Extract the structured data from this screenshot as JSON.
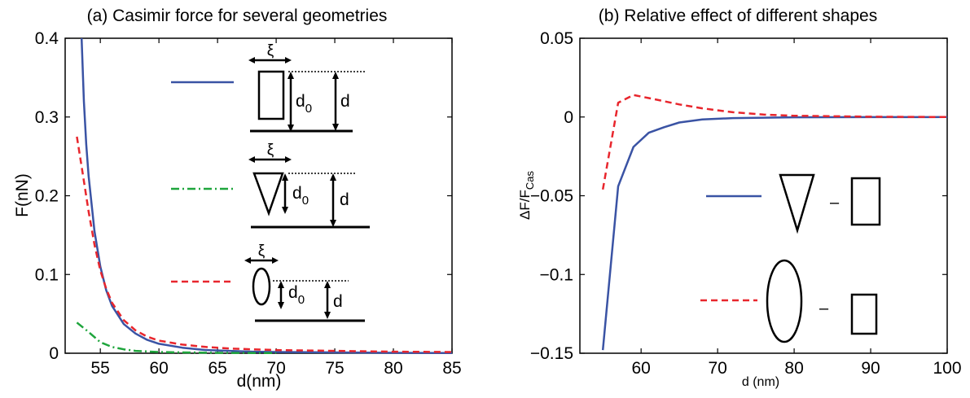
{
  "chart_data": [
    {
      "type": "line",
      "title": "(a) Casimir force for several geometries",
      "xlabel": "d(nm)",
      "ylabel": "F(nN)",
      "xlim": [
        52,
        85
      ],
      "ylim": [
        0,
        0.4
      ],
      "xticks": [
        "55",
        "60",
        "65",
        "70",
        "75",
        "80",
        "85"
      ],
      "yticks": [
        "0",
        "0.1",
        "0.2",
        "0.3",
        "0.4"
      ],
      "grid": false,
      "legend_symbols": {
        "xi": "ξ",
        "d0_base": "d",
        "d0_sub": "0",
        "d": "d"
      },
      "series": [
        {
          "style": "solid",
          "color": "#3a53a4",
          "x": [
            53.4,
            53.6,
            53.8,
            54,
            54.5,
            55,
            55.5,
            56,
            57,
            58,
            59,
            60,
            62,
            64,
            66,
            68,
            70,
            75,
            80,
            85
          ],
          "y": [
            0.4,
            0.32,
            0.265,
            0.225,
            0.155,
            0.11,
            0.08,
            0.06,
            0.037,
            0.025,
            0.017,
            0.012,
            0.007,
            0.004,
            0.003,
            0.002,
            0.0015,
            0.001,
            0.0005,
            0.0003
          ]
        },
        {
          "style": "dashdot",
          "color": "#1ea53c",
          "x": [
            53,
            54,
            55,
            56,
            57,
            58,
            60,
            62,
            65,
            70
          ],
          "y": [
            0.039,
            0.027,
            0.014,
            0.008,
            0.005,
            0.003,
            0.0015,
            0.001,
            0.0005,
            0.0002
          ]
        },
        {
          "style": "dashed",
          "color": "#e8262d",
          "x": [
            53,
            53.5,
            54,
            54.5,
            55,
            55.5,
            56,
            57,
            58,
            59,
            60,
            62,
            64,
            66,
            68,
            70,
            75,
            80,
            85
          ],
          "y": [
            0.275,
            0.228,
            0.18,
            0.138,
            0.105,
            0.082,
            0.064,
            0.042,
            0.029,
            0.021,
            0.016,
            0.011,
            0.008,
            0.006,
            0.005,
            0.004,
            0.003,
            0.002,
            0.0015
          ]
        }
      ]
    },
    {
      "type": "line",
      "title": "(b) Relative effect of different shapes",
      "xlabel": "d (nm)",
      "ylabel_base": "ΔF/F",
      "ylabel_sub": "Cas",
      "xlim": [
        52,
        100
      ],
      "ylim": [
        -0.15,
        0.05
      ],
      "xticks": [
        "60",
        "70",
        "80",
        "90",
        "100"
      ],
      "yticks": [
        "0.05",
        "0",
        "−0.05",
        "−0.1",
        "−0.15"
      ],
      "legend_minus": "–",
      "grid": false,
      "series": [
        {
          "style": "solid",
          "color": "#3a53a4",
          "x": [
            55,
            57,
            59,
            61,
            63,
            65,
            68,
            72,
            80,
            90,
            100
          ],
          "y": [
            -0.148,
            -0.044,
            -0.019,
            -0.01,
            -0.0065,
            -0.0035,
            -0.0015,
            -0.0007,
            -0.0002,
            -0.0001,
            0
          ]
        },
        {
          "style": "dashed",
          "color": "#e8262d",
          "x": [
            55,
            57,
            59,
            61,
            63,
            65,
            68,
            72,
            76,
            80,
            90,
            100
          ],
          "y": [
            -0.046,
            0.009,
            0.014,
            0.012,
            0.01,
            0.008,
            0.0055,
            0.003,
            0.0015,
            0.0008,
            0.0002,
            0
          ]
        }
      ]
    }
  ]
}
